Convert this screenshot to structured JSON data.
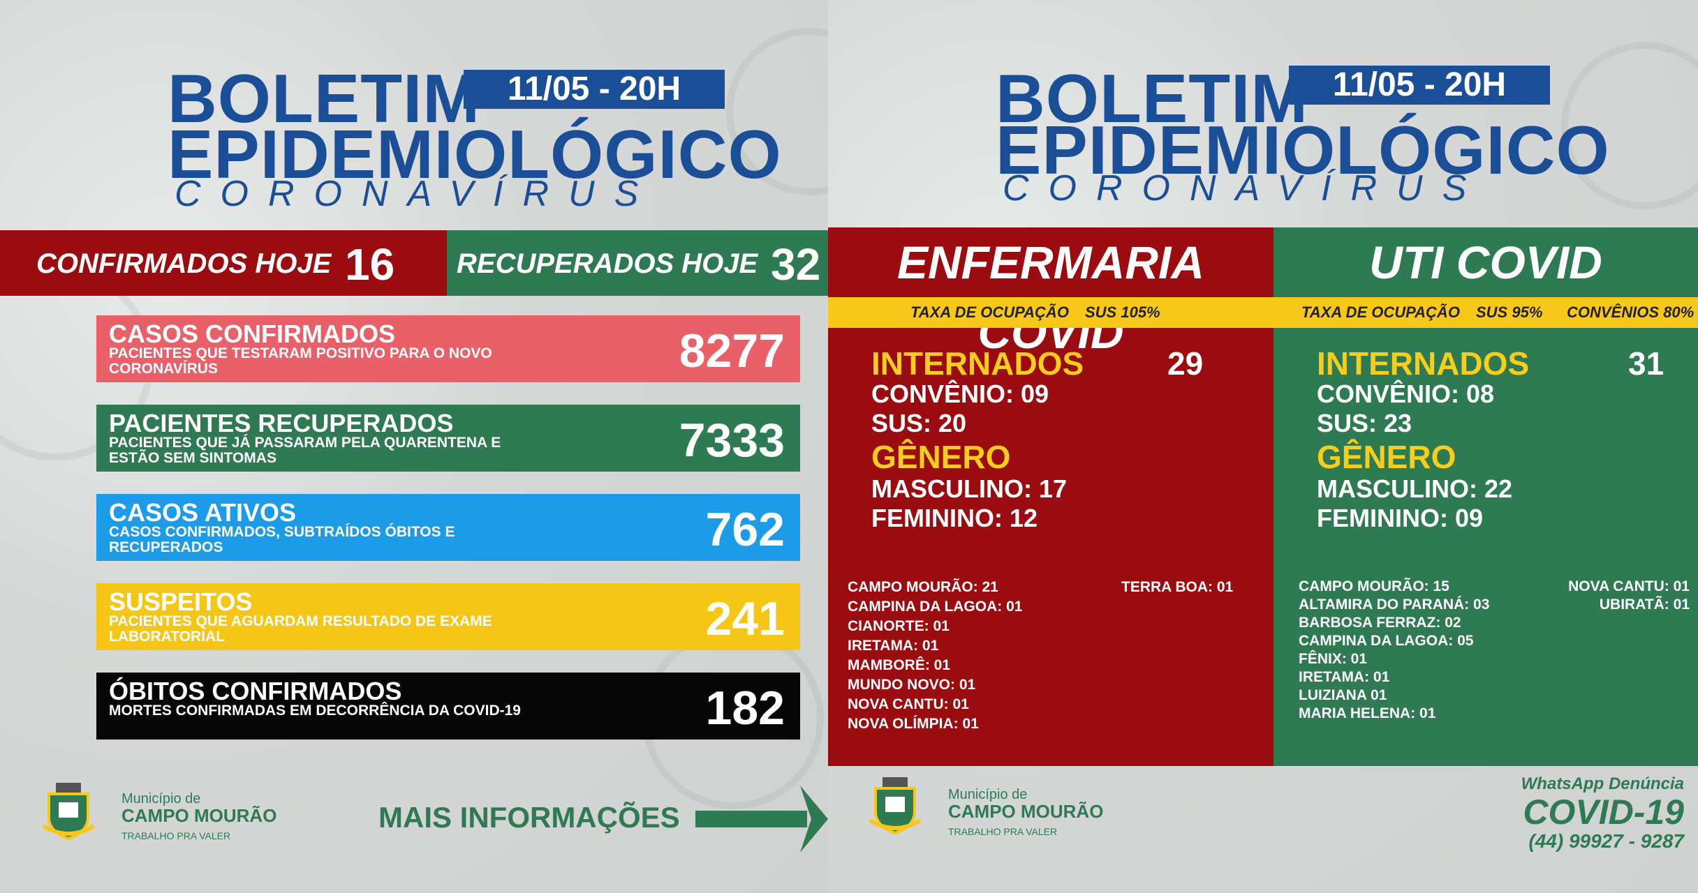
{
  "header": {
    "title_line1": "BOLETIM",
    "title_line2": "EPIDEMIOLÓGICO",
    "subtitle": "CORONAVÍRUS",
    "date": "11/05 - 20H"
  },
  "today": {
    "confirmed_label": "CONFIRMADOS HOJE",
    "confirmed_value": "16",
    "recovered_label": "RECUPERADOS HOJE",
    "recovered_value": "32"
  },
  "cards": [
    {
      "title": "CASOS CONFIRMADOS",
      "desc": "PACIENTES QUE TESTARAM POSITIVO PARA O NOVO CORONAVÍRUS",
      "value": "8277",
      "color": "#ea6069"
    },
    {
      "title": "PACIENTES RECUPERADOS",
      "desc": "PACIENTES QUE JÁ PASSARAM PELA QUARENTENA E ESTÃO SEM SINTOMAS",
      "value": "7333",
      "color": "#2e7a53"
    },
    {
      "title": "CASOS ATIVOS",
      "desc": "CASOS CONFIRMADOS, SUBTRAÍDOS ÓBITOS E RECUPERADOS",
      "value": "762",
      "color": "#1b9be8"
    },
    {
      "title": "SUSPEITOS",
      "desc": "PACIENTES QUE AGUARDAM RESULTADO DE EXAME LABORATORIAL",
      "value": "241",
      "color": "#f6c616"
    },
    {
      "title": "ÓBITOS CONFIRMADOS",
      "desc": "MORTES CONFIRMADAS EM DECORRÊNCIA DA COVID-19",
      "value": "182",
      "color": "#060606"
    }
  ],
  "logo": {
    "line1": "Município de",
    "line2": "CAMPO MOURÃO",
    "line3": "TRABALHO PRA VALER"
  },
  "more_info": "MAIS INFORMAÇÕES",
  "enfermaria": {
    "title": "ENFERMARIA COVID",
    "rate_label": "TAXA DE OCUPAÇÃO",
    "rate_sus": "SUS 105%",
    "internados_label": "INTERNADOS",
    "internados_value": "29",
    "convenio": "CONVÊNIO: 09",
    "sus": "SUS: 20",
    "genero_label": "GÊNERO",
    "masculino": "MASCULINO: 17",
    "feminino": "FEMININO: 12",
    "cities_col1": [
      "CAMPO MOURÃO: 21",
      "CAMPINA DA LAGOA: 01",
      "CIANORTE: 01",
      "IRETAMA: 01",
      "MAMBORÊ: 01",
      "MUNDO NOVO: 01",
      "NOVA CANTU: 01",
      "NOVA OLÍMPIA: 01"
    ],
    "cities_col2": [
      "TERRA BOA: 01"
    ]
  },
  "uti": {
    "title": "UTI COVID",
    "rate_label": "TAXA DE OCUPAÇÃO",
    "rate_sus": "SUS 95%",
    "rate_conv": "CONVÊNIOS  80%",
    "internados_label": "INTERNADOS",
    "internados_value": "31",
    "convenio": "CONVÊNIO: 08",
    "sus": "SUS: 23",
    "genero_label": "GÊNERO",
    "masculino": "MASCULINO: 22",
    "feminino": "FEMININO: 09",
    "cities_col1": [
      "CAMPO MOURÃO: 15",
      "ALTAMIRA DO PARANÁ: 03",
      "BARBOSA FERRAZ: 02",
      "CAMPINA DA LAGOA: 05",
      "FÊNIX: 01",
      "IRETAMA: 01",
      "LUIZIANA 01",
      "MARIA HELENA: 01"
    ],
    "cities_col2": [
      "NOVA CANTU: 01",
      "UBIRATÃ: 01"
    ]
  },
  "whatsapp": {
    "line1": "WhatsApp Denúncia",
    "line2": "COVID-19",
    "line3": "(44) 99927 - 9287"
  },
  "colors": {
    "blue": "#1a4e97",
    "red": "#9b0c10",
    "green": "#2e7a53",
    "yellow": "#f7c81a"
  }
}
